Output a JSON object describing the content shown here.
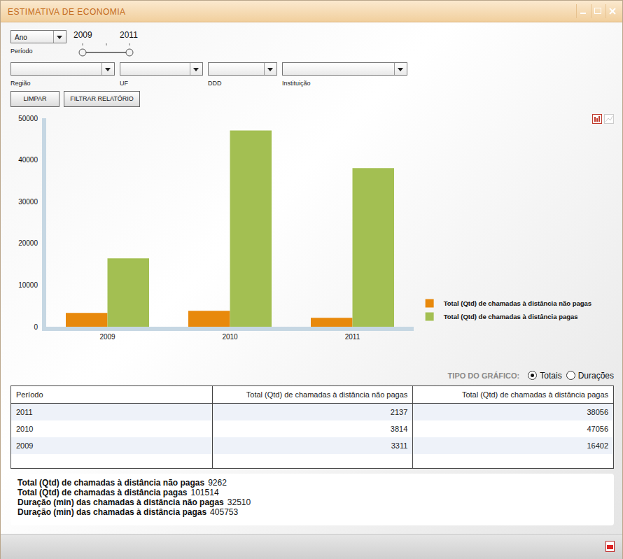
{
  "window": {
    "title": "ESTIMATIVA DE ECONOMIA"
  },
  "filters": {
    "period_select": "Ano",
    "period_label": "Período",
    "range": [
      2009,
      2011
    ],
    "dropdowns": [
      "Região",
      "UF",
      "DDD",
      "Instituição"
    ],
    "buttons": [
      "LIMPAR",
      "FILTRAR RELATÓRIO"
    ]
  },
  "chart_data": {
    "type": "bar",
    "categories": [
      "2009",
      "2010",
      "2011"
    ],
    "series": [
      {
        "name": "Total (Qtd) de chamadas à distância não pagas",
        "color": "#e8890c",
        "values": [
          3311,
          3814,
          2137
        ]
      },
      {
        "name": "Total (Qtd) de chamadas à distância pagas",
        "color": "#a3bf52",
        "values": [
          16402,
          47056,
          38056
        ]
      }
    ],
    "ylim": [
      0,
      50000
    ],
    "yticks": [
      0,
      10000,
      20000,
      30000,
      40000,
      50000
    ],
    "grid": false,
    "legend": "right",
    "data_labels": false
  },
  "chart_type_selector": {
    "label": "TIPO DO GRÁFICO:",
    "options": [
      "Totais",
      "Durações"
    ],
    "selected": "Totais"
  },
  "table": {
    "header": [
      "Período",
      "Total (Qtd) de chamadas à distância não pagas",
      "Total (Qtd) de chamadas à distância pagas"
    ],
    "rows": [
      [
        "2011",
        2137,
        38056
      ],
      [
        "2010",
        3814,
        47056
      ],
      [
        "2009",
        3311,
        16402
      ]
    ]
  },
  "summary": [
    {
      "label": "Total (Qtd) de chamadas à distância não pagas",
      "value": 9262
    },
    {
      "label": "Total (Qtd) de chamadas à distância pagas",
      "value": 101514
    },
    {
      "label": "Duração (min) das chamadas à distância não pagas",
      "value": 32510
    },
    {
      "label": "Duração (min) das chamadas à distância pagas",
      "value": 405753
    }
  ]
}
